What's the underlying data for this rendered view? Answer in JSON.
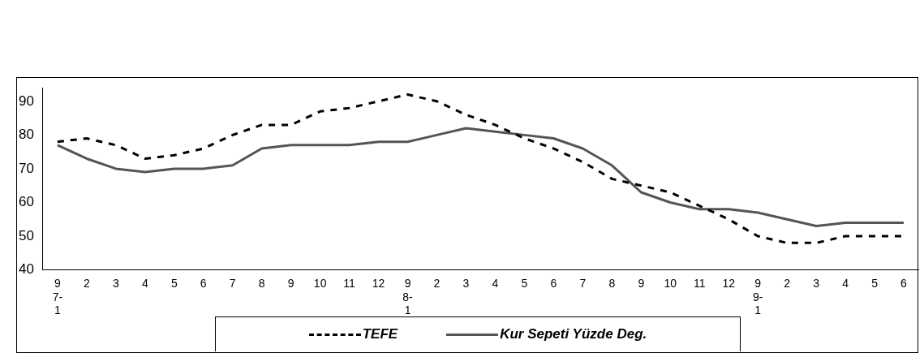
{
  "chart_data": {
    "type": "line",
    "categories": [
      "9\n7-\n1",
      "2",
      "3",
      "4",
      "5",
      "6",
      "7",
      "8",
      "9",
      "10",
      "11",
      "12",
      "9\n8-\n1",
      "2",
      "3",
      "4",
      "5",
      "6",
      "7",
      "8",
      "9",
      "10",
      "11",
      "12",
      "9\n9-\n1",
      "2",
      "3",
      "4",
      "5",
      "6"
    ],
    "series": [
      {
        "name": "TEFE",
        "color": "#000000",
        "line_style": "dashed",
        "values": [
          78,
          79,
          77,
          73,
          74,
          76,
          80,
          83,
          83,
          87,
          88,
          90,
          92,
          90,
          86,
          83,
          79,
          76,
          72,
          67,
          65,
          63,
          59,
          55,
          50,
          48,
          48,
          50,
          50,
          50
        ]
      },
      {
        "name": "Kur Sepeti Yüzde Deg.",
        "color": "#555555",
        "line_style": "solid",
        "values": [
          77,
          73,
          70,
          69,
          70,
          70,
          71,
          76,
          77,
          77,
          77,
          78,
          78,
          80,
          82,
          81,
          80,
          79,
          76,
          71,
          63,
          60,
          58,
          58,
          57,
          55,
          53,
          54,
          54,
          54
        ]
      }
    ],
    "ylim": [
      40,
      94
    ],
    "yticks": [
      40,
      50,
      60,
      70,
      80,
      90
    ],
    "grid": false,
    "legend": "bottom",
    "marker": "none"
  }
}
